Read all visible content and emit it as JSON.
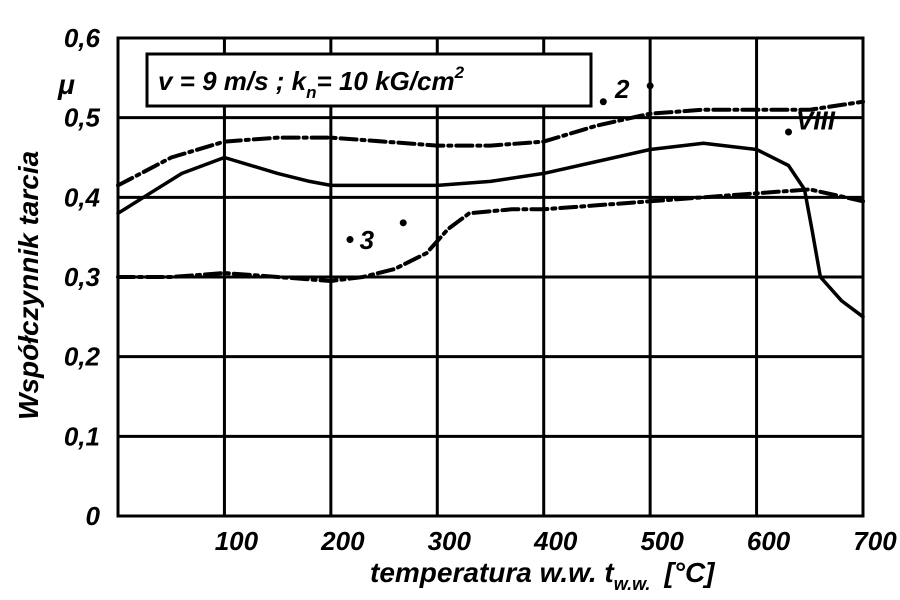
{
  "chart_data": {
    "type": "line",
    "ylabel": "Współczynnik tarcia",
    "ylabel_symbol": "μ",
    "xlabel": {
      "main": "temperatura w.w. t",
      "subscript": "w.w.",
      "unit": "[°C]"
    },
    "xlim": [
      0,
      700
    ],
    "ylim": [
      0,
      0.6
    ],
    "x_ticks": [
      0,
      100,
      200,
      300,
      400,
      500,
      600,
      700
    ],
    "x_tick_labels": [
      "100",
      "200",
      "300",
      "400",
      "500",
      "600",
      "700"
    ],
    "y_ticks": [
      0,
      0.1,
      0.2,
      0.3,
      0.4,
      0.5,
      0.6
    ],
    "y_tick_labels": [
      "0",
      "0,1",
      "0,2",
      "0,3",
      "0,4",
      "0,5",
      "0,6"
    ],
    "grid": true,
    "annotation": {
      "parts": [
        "v = 9 m/s ; k",
        "n",
        "= 10 kG/cm",
        "2"
      ]
    },
    "series": [
      {
        "name": "2",
        "style": "dash-dot",
        "x": [
          0,
          50,
          100,
          150,
          200,
          250,
          300,
          350,
          400,
          450,
          500,
          550,
          600,
          650,
          700
        ],
        "y": [
          0.415,
          0.45,
          0.47,
          0.475,
          0.475,
          0.47,
          0.465,
          0.465,
          0.47,
          0.49,
          0.505,
          0.51,
          0.51,
          0.51,
          0.52
        ]
      },
      {
        "name": "VIII",
        "style": "solid",
        "x": [
          0,
          30,
          60,
          100,
          150,
          180,
          200,
          250,
          300,
          350,
          400,
          450,
          500,
          550,
          600,
          630,
          645,
          652,
          660,
          680,
          700
        ],
        "y": [
          0.38,
          0.405,
          0.43,
          0.45,
          0.43,
          0.42,
          0.415,
          0.415,
          0.415,
          0.42,
          0.43,
          0.445,
          0.46,
          0.468,
          0.46,
          0.44,
          0.41,
          0.36,
          0.3,
          0.27,
          0.25
        ]
      },
      {
        "name": "3",
        "style": "dash-dot",
        "x": [
          0,
          50,
          100,
          150,
          200,
          230,
          260,
          290,
          310,
          330,
          370,
          400,
          450,
          500,
          550,
          600,
          650,
          700
        ],
        "y": [
          0.3,
          0.3,
          0.305,
          0.3,
          0.295,
          0.3,
          0.31,
          0.33,
          0.36,
          0.38,
          0.385,
          0.385,
          0.39,
          0.395,
          0.4,
          0.405,
          0.41,
          0.395
        ]
      }
    ]
  }
}
